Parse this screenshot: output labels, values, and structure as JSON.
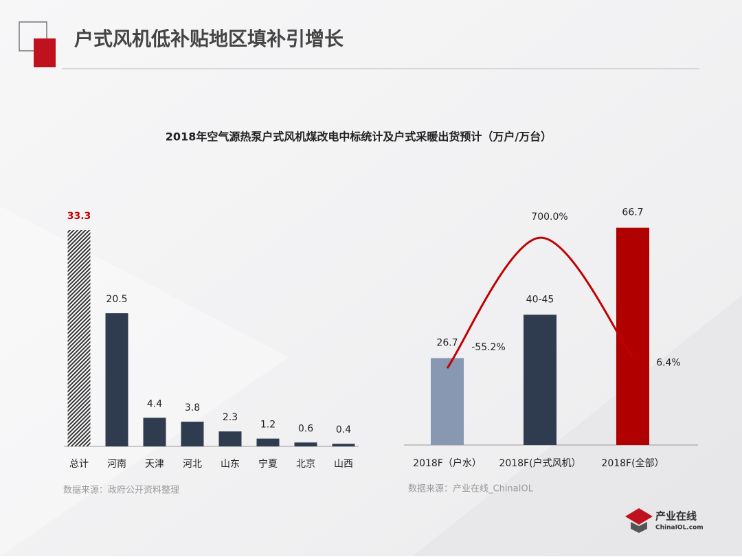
{
  "header": {
    "title": "户式风机低补贴地区填补引增长",
    "chart_title": "2018年空气源热泵户式风机煤改电中标统计及户式采暖出货预计（万户/万台）"
  },
  "chart_data": [
    {
      "type": "bar",
      "categories": [
        "总计",
        "河南",
        "天津",
        "河北",
        "山东",
        "宁夏",
        "北京",
        "山西"
      ],
      "values": [
        33.3,
        20.5,
        4.4,
        3.8,
        2.3,
        1.2,
        0.6,
        0.4
      ],
      "colors": [
        "#555555",
        "#2f3b4f",
        "#2f3b4f",
        "#2f3b4f",
        "#2f3b4f",
        "#2f3b4f",
        "#2f3b4f",
        "#2f3b4f"
      ],
      "hatched": [
        true,
        false,
        false,
        false,
        false,
        false,
        false,
        false
      ],
      "label_colors": [
        "#c00000",
        "#222222",
        "#222222",
        "#222222",
        "#222222",
        "#222222",
        "#222222",
        "#222222"
      ],
      "ylim": [
        0,
        35
      ],
      "source": "数据来源：政府公开资料整理"
    },
    {
      "type": "bar-line",
      "categories": [
        "2018F（户水）",
        "2018F(户式风机）",
        "2018F(全部）"
      ],
      "bars": {
        "values": [
          26.7,
          40,
          66.7
        ],
        "value_labels": [
          "26.7",
          "40-45",
          "66.7"
        ],
        "colors": [
          "#8898b3",
          "#2f3b4f",
          "#b00000"
        ]
      },
      "line": {
        "values": [
          -55.2,
          700,
          6.4
        ],
        "value_labels": [
          "-55.2%",
          "700.0%",
          "6.4%"
        ],
        "color": "#c00000",
        "axis": "y2"
      },
      "ylim": [
        0,
        70
      ],
      "y2lim": [
        -500,
        820
      ],
      "source": "数据来源：产业在线_ChinaIOL"
    }
  ],
  "logo": {
    "name": "产业在线",
    "site": "ChinaIOL.com"
  }
}
